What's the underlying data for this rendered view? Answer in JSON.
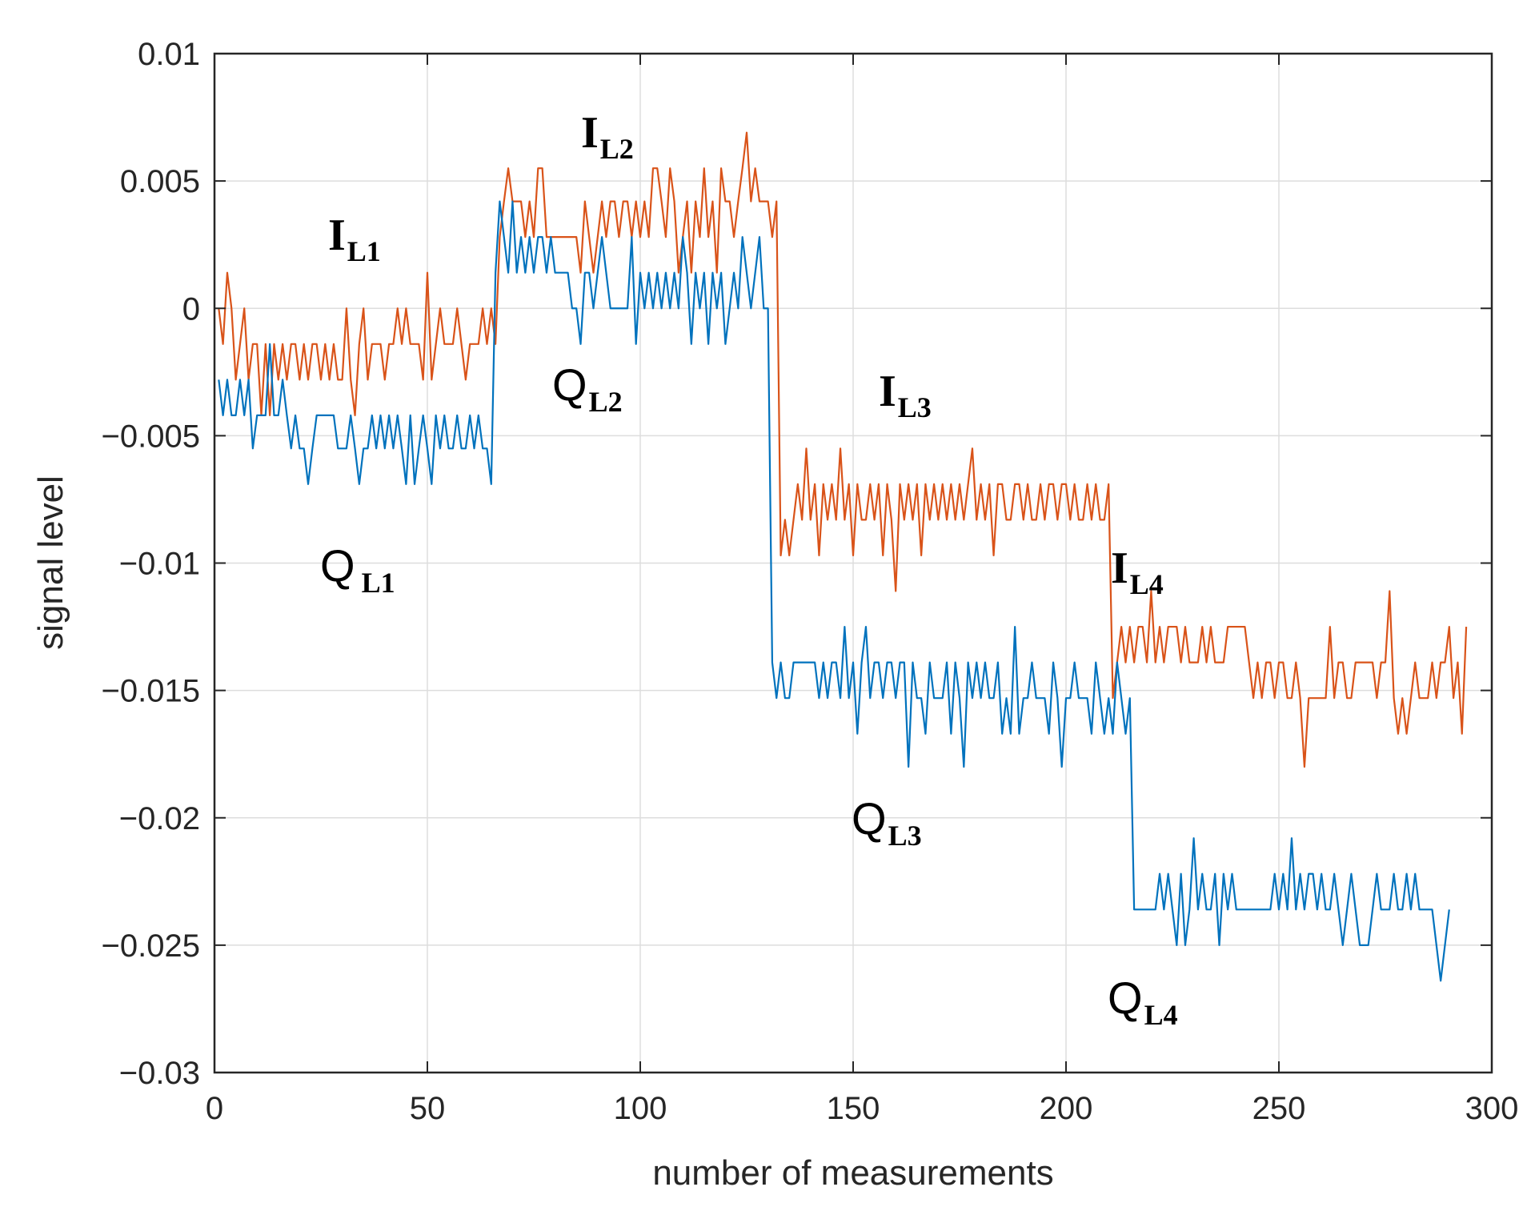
{
  "chart_data": {
    "type": "line",
    "title": "",
    "xlabel": "number of measurements",
    "ylabel": "signal level",
    "xlim": [
      0,
      300
    ],
    "ylim": [
      -0.03,
      0.01
    ],
    "grid": true,
    "legend": "none",
    "xticks": [
      0,
      50,
      100,
      150,
      200,
      250,
      300
    ],
    "xtick_labels": [
      "0",
      "50",
      "100",
      "150",
      "200",
      "250",
      "300"
    ],
    "yticks": [
      0.01,
      0.005,
      0,
      -0.005,
      -0.01,
      -0.015,
      -0.02,
      -0.025,
      -0.03
    ],
    "ytick_labels": [
      "0.01",
      "0.005",
      "0",
      "−0.005",
      "−0.01",
      "−0.015",
      "−0.02",
      "−0.025",
      "−0.03"
    ],
    "series": [
      {
        "name": "I",
        "color": "#D95319",
        "x_start": 1,
        "values": [
          0.0,
          -0.0014,
          0.0014,
          0.0,
          -0.0028,
          -0.0014,
          0.0,
          -0.0028,
          -0.0014,
          -0.0014,
          -0.0042,
          -0.0014,
          -0.0042,
          -0.0014,
          -0.0028,
          -0.0014,
          -0.0028,
          -0.0014,
          -0.0014,
          -0.0028,
          -0.0014,
          -0.0028,
          -0.0014,
          -0.0014,
          -0.0028,
          -0.0014,
          -0.0028,
          -0.0014,
          -0.0028,
          -0.0028,
          0.0,
          -0.0028,
          -0.0042,
          -0.0014,
          0.0,
          -0.0028,
          -0.0014,
          -0.0014,
          -0.0014,
          -0.0028,
          -0.0014,
          -0.0014,
          0.0,
          -0.0014,
          0.0,
          -0.0014,
          -0.0014,
          -0.0014,
          -0.0028,
          0.0014,
          -0.0028,
          -0.0014,
          0.0,
          -0.0014,
          -0.0014,
          -0.0014,
          0.0,
          -0.0014,
          -0.0028,
          -0.0014,
          -0.0014,
          -0.0014,
          0.0,
          -0.0014,
          0.0,
          -0.0014,
          0.0028,
          0.0042,
          0.0055,
          0.0042,
          0.0042,
          0.0042,
          0.0028,
          0.0042,
          0.0028,
          0.0055,
          0.0055,
          0.0028,
          0.0028,
          0.0028,
          0.0028,
          0.0028,
          0.0028,
          0.0028,
          0.0028,
          0.0014,
          0.0042,
          0.0028,
          0.0014,
          0.0028,
          0.0042,
          0.0028,
          0.0042,
          0.0042,
          0.0028,
          0.0042,
          0.0042,
          0.0028,
          0.0042,
          0.0028,
          0.0042,
          0.0028,
          0.0055,
          0.0055,
          0.0042,
          0.0028,
          0.0055,
          0.0042,
          0.0014,
          0.0028,
          0.0042,
          0.0014,
          0.0042,
          0.0028,
          0.0055,
          0.0028,
          0.0042,
          0.0014,
          0.0055,
          0.0042,
          0.0042,
          0.0028,
          0.0042,
          0.0055,
          0.0069,
          0.0042,
          0.0055,
          0.0042,
          0.0042,
          0.0042,
          0.0028,
          0.0042,
          -0.0097,
          -0.0083,
          -0.0097,
          -0.0083,
          -0.0069,
          -0.0083,
          -0.0055,
          -0.0083,
          -0.0069,
          -0.0097,
          -0.0069,
          -0.0083,
          -0.0069,
          -0.0083,
          -0.0055,
          -0.0083,
          -0.0069,
          -0.0097,
          -0.0069,
          -0.0083,
          -0.0083,
          -0.0069,
          -0.0083,
          -0.0069,
          -0.0097,
          -0.0069,
          -0.0083,
          -0.0111,
          -0.0069,
          -0.0083,
          -0.0069,
          -0.0083,
          -0.0069,
          -0.0097,
          -0.0069,
          -0.0083,
          -0.0069,
          -0.0083,
          -0.0069,
          -0.0083,
          -0.0069,
          -0.0083,
          -0.0069,
          -0.0083,
          -0.0069,
          -0.0055,
          -0.0083,
          -0.0069,
          -0.0083,
          -0.0069,
          -0.0097,
          -0.0069,
          -0.0069,
          -0.0083,
          -0.0083,
          -0.0069,
          -0.0069,
          -0.0083,
          -0.0069,
          -0.0083,
          -0.0083,
          -0.0069,
          -0.0083,
          -0.0069,
          -0.0069,
          -0.0083,
          -0.0069,
          -0.0069,
          -0.0083,
          -0.0069,
          -0.0083,
          -0.0083,
          -0.0069,
          -0.0083,
          -0.0069,
          -0.0083,
          -0.0083,
          -0.0069,
          -0.0153,
          -0.0139,
          -0.0125,
          -0.0139,
          -0.0125,
          -0.0139,
          -0.0125,
          -0.0125,
          -0.0139,
          -0.0111,
          -0.0139,
          -0.0125,
          -0.0139,
          -0.0125,
          -0.0125,
          -0.0125,
          -0.0139,
          -0.0125,
          -0.0139,
          -0.0139,
          -0.0139,
          -0.0125,
          -0.0139,
          -0.0125,
          -0.0139,
          -0.0139,
          -0.0139,
          -0.0125,
          -0.0125,
          -0.0125,
          -0.0125,
          -0.0125,
          -0.0139,
          -0.0153,
          -0.0139,
          -0.0153,
          -0.0139,
          -0.0139,
          -0.0153,
          -0.0139,
          -0.0139,
          -0.0153,
          -0.0153,
          -0.0139,
          -0.0153,
          -0.018,
          -0.0153,
          -0.0153,
          -0.0153,
          -0.0153,
          -0.0153,
          -0.0125,
          -0.0153,
          -0.0139,
          -0.0139,
          -0.0153,
          -0.0153,
          -0.0139,
          -0.0139,
          -0.0139,
          -0.0139,
          -0.0139,
          -0.0153,
          -0.0139,
          -0.0139,
          -0.0111,
          -0.0153,
          -0.0167,
          -0.0153,
          -0.0167,
          -0.0153,
          -0.0139,
          -0.0153,
          -0.0153,
          -0.0153,
          -0.0139,
          -0.0153,
          -0.0139,
          -0.0139,
          -0.0125,
          -0.0153,
          -0.0139,
          -0.0167,
          -0.0125
        ]
      },
      {
        "name": "Q",
        "color": "#0072BD",
        "x_start": 1,
        "values": [
          -0.0028,
          -0.0042,
          -0.0028,
          -0.0042,
          -0.0042,
          -0.0028,
          -0.0042,
          -0.0028,
          -0.0055,
          -0.0042,
          -0.0042,
          -0.0042,
          -0.0014,
          -0.0042,
          -0.0042,
          -0.0028,
          -0.0042,
          -0.0055,
          -0.0042,
          -0.0055,
          -0.0055,
          -0.0069,
          -0.0055,
          -0.0042,
          -0.0042,
          -0.0042,
          -0.0042,
          -0.0042,
          -0.0055,
          -0.0055,
          -0.0055,
          -0.0042,
          -0.0055,
          -0.0069,
          -0.0055,
          -0.0055,
          -0.0042,
          -0.0055,
          -0.0042,
          -0.0055,
          -0.0042,
          -0.0055,
          -0.0042,
          -0.0055,
          -0.0069,
          -0.0042,
          -0.0069,
          -0.0055,
          -0.0042,
          -0.0055,
          -0.0069,
          -0.0042,
          -0.0055,
          -0.0042,
          -0.0055,
          -0.0055,
          -0.0042,
          -0.0055,
          -0.0055,
          -0.0042,
          -0.0055,
          -0.0042,
          -0.0055,
          -0.0055,
          -0.0069,
          0.0014,
          0.0042,
          0.0028,
          0.0014,
          0.0042,
          0.0014,
          0.0028,
          0.0014,
          0.0028,
          0.0014,
          0.0028,
          0.0028,
          0.0014,
          0.0028,
          0.0014,
          0.0014,
          0.0014,
          0.0014,
          0.0,
          0.0,
          -0.0014,
          0.0014,
          0.0014,
          0.0,
          0.0014,
          0.0028,
          0.0014,
          0.0,
          0.0,
          0.0,
          0.0,
          0.0,
          0.0028,
          -0.0014,
          0.0014,
          0.0,
          0.0014,
          0.0,
          0.0014,
          0.0,
          0.0014,
          0.0,
          0.0014,
          0.0,
          0.0028,
          0.0014,
          -0.0014,
          0.0014,
          0.0,
          0.0014,
          -0.0014,
          0.0014,
          0.0,
          0.0014,
          -0.0014,
          0.0,
          0.0014,
          0.0,
          0.0028,
          0.0014,
          0.0,
          0.0014,
          0.0028,
          0.0,
          0.0,
          -0.0139,
          -0.0153,
          -0.0139,
          -0.0153,
          -0.0153,
          -0.0139,
          -0.0139,
          -0.0139,
          -0.0139,
          -0.0139,
          -0.0139,
          -0.0153,
          -0.0139,
          -0.0153,
          -0.0139,
          -0.0139,
          -0.0153,
          -0.0125,
          -0.0153,
          -0.0139,
          -0.0167,
          -0.0139,
          -0.0125,
          -0.0153,
          -0.0139,
          -0.0139,
          -0.0153,
          -0.0139,
          -0.0139,
          -0.0153,
          -0.0139,
          -0.0139,
          -0.018,
          -0.0139,
          -0.0153,
          -0.0153,
          -0.0167,
          -0.0139,
          -0.0153,
          -0.0153,
          -0.0153,
          -0.0139,
          -0.0167,
          -0.0139,
          -0.0153,
          -0.018,
          -0.0139,
          -0.0153,
          -0.0139,
          -0.0153,
          -0.0139,
          -0.0153,
          -0.0153,
          -0.0139,
          -0.0167,
          -0.0153,
          -0.0167,
          -0.0125,
          -0.0167,
          -0.0153,
          -0.0153,
          -0.0139,
          -0.0153,
          -0.0153,
          -0.0153,
          -0.0167,
          -0.0139,
          -0.0153,
          -0.018,
          -0.0153,
          -0.0153,
          -0.0139,
          -0.0153,
          -0.0153,
          -0.0153,
          -0.0167,
          -0.0139,
          -0.0153,
          -0.0167,
          -0.0153,
          -0.0167,
          -0.0139,
          -0.0153,
          -0.0167,
          -0.0153,
          -0.0236,
          -0.0236,
          -0.0236,
          -0.0236,
          -0.0236,
          -0.0236,
          -0.0222,
          -0.0236,
          -0.0222,
          -0.0236,
          -0.025,
          -0.0222,
          -0.025,
          -0.0236,
          -0.0208,
          -0.0236,
          -0.0222,
          -0.0236,
          -0.0236,
          -0.0222,
          -0.025,
          -0.0222,
          -0.0236,
          -0.0222,
          -0.0236,
          -0.0236,
          -0.0236,
          -0.0236,
          -0.0236,
          -0.0236,
          -0.0236,
          -0.0236,
          -0.0236,
          -0.0222,
          -0.0236,
          -0.0222,
          -0.0236,
          -0.0208,
          -0.0236,
          -0.0222,
          -0.0236,
          -0.0222,
          -0.0222,
          -0.0236,
          -0.0222,
          -0.0236,
          -0.0236,
          -0.0222,
          -0.0236,
          -0.025,
          -0.0236,
          -0.0222,
          -0.0236,
          -0.025,
          -0.025,
          -0.025,
          -0.0236,
          -0.0222,
          -0.0236,
          -0.0236,
          -0.0236,
          -0.0222,
          -0.0236,
          -0.0236,
          -0.0222,
          -0.0236,
          -0.0222,
          -0.0236,
          -0.0236,
          -0.0236,
          -0.0236,
          -0.025,
          -0.0264,
          -0.025,
          -0.0236
        ]
      }
    ],
    "annotations": [
      {
        "letter": "I",
        "sub": "L1"
      },
      {
        "letter": "I",
        "sub": "L2"
      },
      {
        "letter": "Q",
        "sub": "L2"
      },
      {
        "letter": "I",
        "sub": "L3"
      },
      {
        "letter": "Q",
        "sub": "L1"
      },
      {
        "letter": "I",
        "sub": "L4"
      },
      {
        "letter": "Q",
        "sub": "L3"
      },
      {
        "letter": "Q",
        "sub": "L4"
      }
    ]
  }
}
